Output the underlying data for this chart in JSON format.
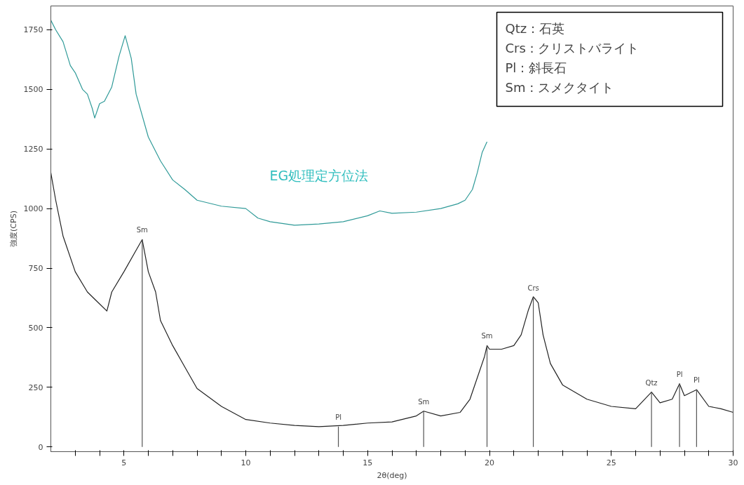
{
  "chart_data": {
    "type": "line",
    "xlabel": "2θ(deg)",
    "ylabel": "強度(CPS)",
    "xlim": [
      2,
      30
    ],
    "ylim": [
      -20,
      1850
    ],
    "xticks": [
      {
        "value": 3,
        "label": null
      },
      {
        "value": 4,
        "label": null
      },
      5,
      {
        "value": 6,
        "label": null
      },
      {
        "value": 7,
        "label": null
      },
      {
        "value": 8,
        "label": null
      },
      {
        "value": 9,
        "label": null
      },
      10,
      {
        "value": 11,
        "label": null
      },
      {
        "value": 12,
        "label": null
      },
      {
        "value": 13,
        "label": null
      },
      {
        "value": 14,
        "label": null
      },
      15,
      {
        "value": 16,
        "label": null
      },
      {
        "value": 17,
        "label": null
      },
      {
        "value": 18,
        "label": null
      },
      {
        "value": 19,
        "label": null
      },
      20,
      {
        "value": 21,
        "label": null
      },
      {
        "value": 22,
        "label": null
      },
      {
        "value": 23,
        "label": null
      },
      {
        "value": 24,
        "label": null
      },
      25,
      {
        "value": 26,
        "label": null
      },
      {
        "value": 27,
        "label": null
      },
      {
        "value": 28,
        "label": null
      },
      {
        "value": 29,
        "label": null
      },
      30
    ],
    "yticks": [
      0,
      250,
      500,
      750,
      1000,
      1250,
      1500,
      1750
    ],
    "grid": false,
    "marker": "none",
    "line_style": "solid",
    "series": [
      {
        "name": "EG処理定方位法",
        "color": "#2f9a98",
        "x": [
          2,
          2.2,
          2.5,
          2.8,
          3,
          3.3,
          3.5,
          3.7,
          3.8,
          4,
          4.2,
          4.5,
          4.8,
          5.05,
          5.3,
          5.5,
          6,
          6.5,
          7,
          7.5,
          8,
          9,
          10,
          10.5,
          11,
          12,
          13,
          14,
          15,
          15.5,
          16,
          17,
          18,
          18.7,
          19,
          19.3,
          19.5,
          19.7,
          19.9
        ],
        "values": [
          1790,
          1750,
          1700,
          1600,
          1570,
          1500,
          1480,
          1420,
          1380,
          1440,
          1450,
          1510,
          1640,
          1725,
          1630,
          1480,
          1300,
          1200,
          1120,
          1080,
          1035,
          1010,
          1000,
          960,
          945,
          930,
          935,
          945,
          970,
          990,
          980,
          985,
          1000,
          1020,
          1035,
          1080,
          1150,
          1235,
          1280
        ]
      },
      {
        "color": "#222222",
        "x": [
          2,
          2.2,
          2.5,
          3,
          3.5,
          4,
          4.3,
          4.5,
          5,
          5.5,
          5.75,
          6,
          6.3,
          6.5,
          7,
          7.5,
          8,
          9,
          10,
          11,
          12,
          13,
          14,
          15,
          16,
          17,
          17.3,
          18,
          18.8,
          19.2,
          19.5,
          19.8,
          19.9,
          20,
          20.5,
          21,
          21.3,
          21.6,
          21.8,
          22,
          22.2,
          22.5,
          23,
          24,
          25,
          26,
          26.65,
          27,
          27.5,
          27.8,
          28,
          28.5,
          29,
          29.5,
          30
        ],
        "values": [
          1150,
          1035,
          885,
          735,
          650,
          600,
          570,
          650,
          735,
          825,
          870,
          735,
          650,
          530,
          425,
          335,
          245,
          170,
          115,
          100,
          90,
          85,
          90,
          100,
          105,
          130,
          150,
          130,
          145,
          200,
          290,
          380,
          425,
          410,
          410,
          425,
          470,
          575,
          630,
          605,
          470,
          350,
          260,
          200,
          170,
          160,
          230,
          185,
          200,
          265,
          215,
          240,
          170,
          160,
          145
        ]
      }
    ],
    "annotations": [
      {
        "text": "Sm",
        "x": 5.75,
        "y": 870
      },
      {
        "text": "Pl",
        "x": 13.8,
        "y": 85
      },
      {
        "text": "Sm",
        "x": 17.3,
        "y": 150
      },
      {
        "text": "Sm",
        "x": 19.9,
        "y": 425
      },
      {
        "text": "Crs",
        "x": 21.8,
        "y": 625
      },
      {
        "text": "Qtz",
        "x": 26.65,
        "y": 230
      },
      {
        "text": "Pl",
        "x": 27.8,
        "y": 265
      },
      {
        "text": "Pl",
        "x": 28.5,
        "y": 240
      },
      "Qtz : 石英",
      "Crs : クリストバライト",
      "Pl  : 斜長石",
      "Sm : スメクタイト"
    ]
  }
}
